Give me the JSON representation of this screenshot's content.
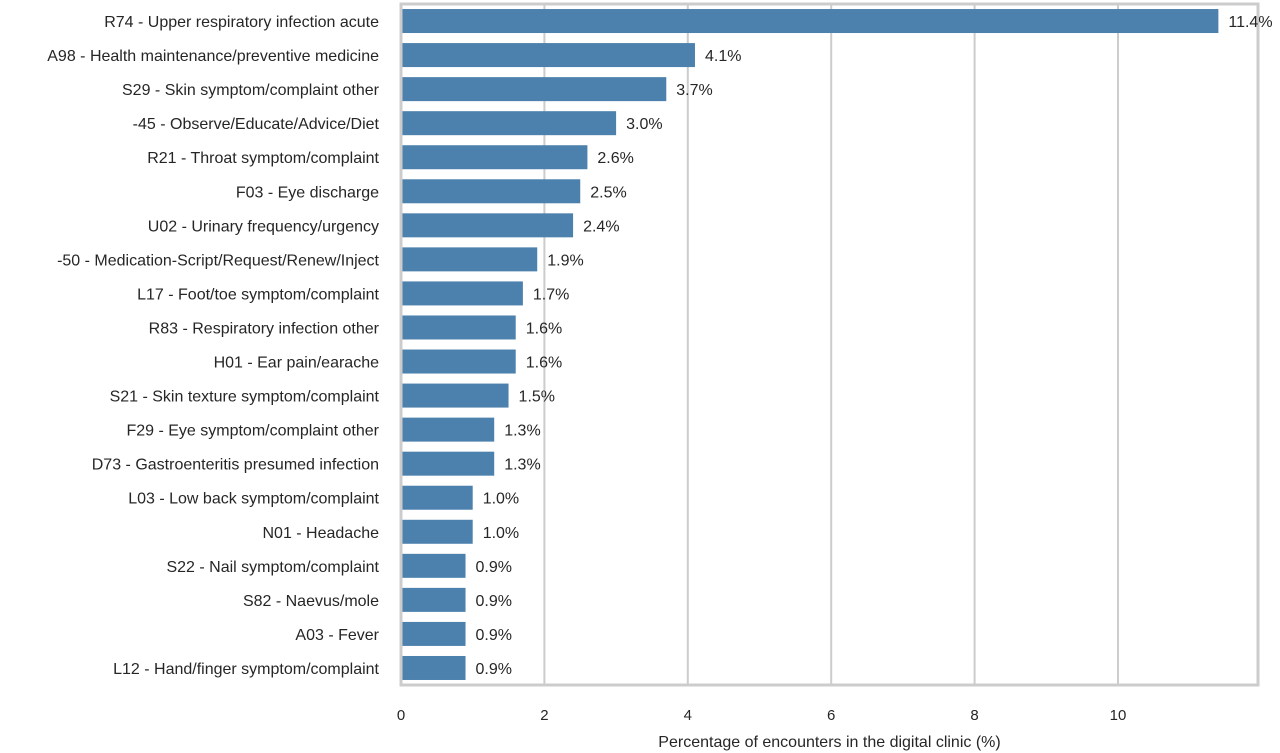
{
  "chart_data": {
    "type": "bar",
    "orientation": "horizontal",
    "categories": [
      "R74 - Upper respiratory infection acute",
      "A98 - Health maintenance/preventive medicine",
      "S29 - Skin symptom/complaint other",
      "-45 - Observe/Educate/Advice/Diet",
      "R21 - Throat symptom/complaint",
      "F03 - Eye discharge",
      "U02 - Urinary frequency/urgency",
      "-50 - Medication-Script/Request/Renew/Inject",
      "L17 - Foot/toe symptom/complaint",
      "R83 - Respiratory infection other",
      "H01 - Ear pain/earache",
      "S21 - Skin texture symptom/complaint",
      "F29 - Eye symptom/complaint other",
      "D73 - Gastroenteritis presumed infection",
      "L03 - Low back symptom/complaint",
      "N01 - Headache",
      "S22 - Nail symptom/complaint",
      "S82 - Naevus/mole",
      "A03 - Fever",
      "L12 - Hand/finger symptom/complaint"
    ],
    "values": [
      11.4,
      4.1,
      3.7,
      3.0,
      2.6,
      2.5,
      2.4,
      1.9,
      1.7,
      1.6,
      1.6,
      1.5,
      1.3,
      1.3,
      1.0,
      1.0,
      0.9,
      0.9,
      0.9,
      0.9
    ],
    "value_labels": [
      "11.4%",
      "4.1%",
      "3.7%",
      "3.0%",
      "2.6%",
      "2.5%",
      "2.4%",
      "1.9%",
      "1.7%",
      "1.6%",
      "1.6%",
      "1.5%",
      "1.3%",
      "1.3%",
      "1.0%",
      "1.0%",
      "0.9%",
      "0.9%",
      "0.9%",
      "0.9%"
    ],
    "xlabel": "Percentage of encounters in the digital clinic (%)",
    "ylabel": "",
    "xlim": [
      0,
      12
    ],
    "xticks": [
      0,
      2,
      4,
      6,
      8,
      10
    ],
    "xtick_labels": [
      "0",
      "2",
      "4",
      "6",
      "8",
      "10"
    ],
    "grid": "vertical",
    "bar_color": "#4c81ad",
    "grid_color": "#cccccc",
    "frame_color": "#cccccc"
  }
}
